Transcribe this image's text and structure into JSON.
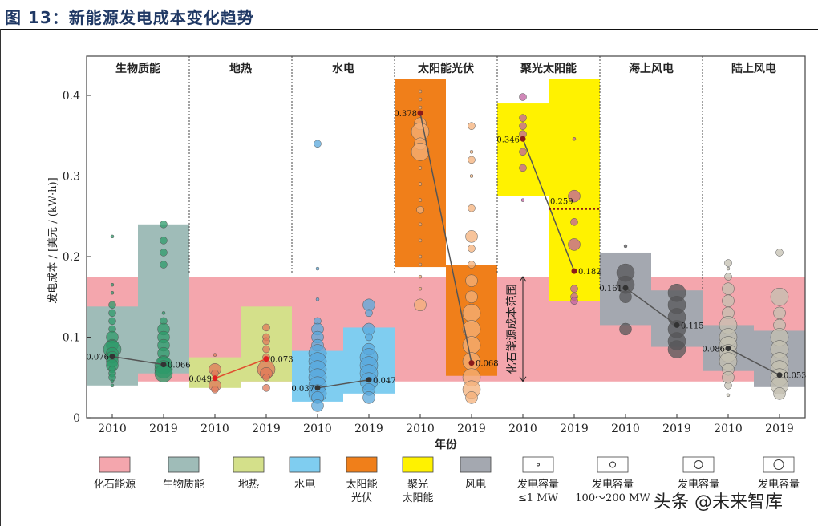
{
  "title": "图 13：新能源发电成本变化趋势",
  "watermark": "头条 @未来智库",
  "chart_data": {
    "type": "scatter",
    "title": "新能源发电成本变化趋势",
    "xlabel": "年份",
    "ylabel": "发电成本 / [美元 / (kW·h)]",
    "ylim": [
      0,
      0.44
    ],
    "yticks": [
      0,
      0.1,
      0.2,
      0.3,
      0.4
    ],
    "ytick_labels": [
      "0",
      "0.1",
      "0.2",
      "0.3",
      "0.4"
    ],
    "fossil_range": [
      0.045,
      0.175
    ],
    "fossil_annotation": "化石能源成本范围",
    "groups": [
      {
        "name": "生物质能",
        "color": "#9fbcb8",
        "point_color": "#2e9a6a",
        "years": [
          "2010",
          "2019"
        ],
        "median": [
          0.076,
          0.066
        ],
        "median_labels": [
          "0.076",
          "0.066"
        ],
        "range": [
          [
            0.04,
            0.138
          ],
          [
            0.055,
            0.24
          ]
        ],
        "points": [
          [
            [
              0.225,
              1
            ],
            [
              0.165,
              1
            ],
            [
              0.155,
              1
            ],
            [
              0.14,
              2
            ],
            [
              0.13,
              2
            ],
            [
              0.12,
              2
            ],
            [
              0.11,
              2
            ],
            [
              0.1,
              3
            ],
            [
              0.09,
              3
            ],
            [
              0.085,
              4
            ],
            [
              0.08,
              3
            ],
            [
              0.075,
              3
            ],
            [
              0.07,
              3
            ],
            [
              0.065,
              3
            ],
            [
              0.06,
              2
            ],
            [
              0.055,
              2
            ],
            [
              0.05,
              2
            ],
            [
              0.045,
              1
            ],
            [
              0.04,
              1
            ]
          ],
          [
            [
              0.24,
              2
            ],
            [
              0.22,
              2
            ],
            [
              0.205,
              2
            ],
            [
              0.19,
              2
            ],
            [
              0.13,
              1
            ],
            [
              0.12,
              2
            ],
            [
              0.11,
              3
            ],
            [
              0.1,
              3
            ],
            [
              0.09,
              3
            ],
            [
              0.08,
              3
            ],
            [
              0.07,
              3
            ],
            [
              0.065,
              4
            ],
            [
              0.06,
              4
            ],
            [
              0.055,
              4
            ]
          ]
        ]
      },
      {
        "name": "地热",
        "color": "#d4e08a",
        "point_color": "#e07a5a",
        "years": [
          "2010",
          "2019"
        ],
        "median": [
          0.049,
          0.073
        ],
        "median_labels": [
          "0.049",
          "0.073"
        ],
        "range": [
          [
            0.037,
            0.075
          ],
          [
            0.045,
            0.138
          ]
        ],
        "points": [
          [
            [
              0.078,
              1
            ],
            [
              0.06,
              3
            ],
            [
              0.055,
              2
            ],
            [
              0.04,
              3
            ],
            [
              0.035,
              2
            ]
          ],
          [
            [
              0.112,
              2
            ],
            [
              0.1,
              2
            ],
            [
              0.095,
              2
            ],
            [
              0.085,
              2
            ],
            [
              0.075,
              2
            ],
            [
              0.06,
              4
            ],
            [
              0.055,
              3
            ],
            [
              0.05,
              2
            ],
            [
              0.037,
              2
            ]
          ]
        ]
      },
      {
        "name": "水电",
        "color": "#7fcdf0",
        "point_color": "#5aa8dc",
        "years": [
          "2010",
          "2019"
        ],
        "median": [
          0.037,
          0.047
        ],
        "median_labels": [
          "0.037",
          "0.047"
        ],
        "range": [
          [
            0.02,
            0.083
          ],
          [
            0.03,
            0.112
          ]
        ],
        "points": [
          [
            [
              0.34,
              2
            ],
            [
              0.185,
              1
            ],
            [
              0.147,
              1
            ],
            [
              0.12,
              2
            ],
            [
              0.11,
              3
            ],
            [
              0.1,
              3
            ],
            [
              0.09,
              3
            ],
            [
              0.08,
              4
            ],
            [
              0.07,
              4
            ],
            [
              0.06,
              4
            ],
            [
              0.05,
              4
            ],
            [
              0.04,
              4
            ],
            [
              0.03,
              4
            ],
            [
              0.025,
              3
            ],
            [
              0.015,
              3
            ]
          ],
          [
            [
              0.14,
              3
            ],
            [
              0.13,
              2
            ],
            [
              0.11,
              3
            ],
            [
              0.1,
              2
            ],
            [
              0.085,
              3
            ],
            [
              0.075,
              4
            ],
            [
              0.065,
              4
            ],
            [
              0.055,
              4
            ],
            [
              0.045,
              4
            ],
            [
              0.035,
              3
            ],
            [
              0.025,
              3
            ]
          ]
        ]
      },
      {
        "name": "太阳能光伏",
        "color": "#f07f1a",
        "point_color": "#f4b07a",
        "years": [
          "2010",
          "2019"
        ],
        "median": [
          0.378,
          0.068
        ],
        "median_labels": [
          "0.378",
          "0.068"
        ],
        "range": [
          [
            0.187,
            0.42
          ],
          [
            0.052,
            0.19
          ]
        ],
        "points": [
          [
            [
              0.405,
              1
            ],
            [
              0.395,
              1
            ],
            [
              0.385,
              1
            ],
            [
              0.365,
              3
            ],
            [
              0.355,
              4
            ],
            [
              0.34,
              3
            ],
            [
              0.33,
              4
            ],
            [
              0.31,
              1
            ],
            [
              0.29,
              1
            ],
            [
              0.27,
              1
            ],
            [
              0.258,
              2
            ],
            [
              0.24,
              1
            ],
            [
              0.22,
              1
            ],
            [
              0.2,
              1
            ],
            [
              0.19,
              1
            ],
            [
              0.175,
              1
            ],
            [
              0.16,
              1
            ],
            [
              0.14,
              3
            ]
          ],
          [
            [
              0.362,
              2
            ],
            [
              0.33,
              1
            ],
            [
              0.32,
              2
            ],
            [
              0.3,
              1
            ],
            [
              0.26,
              2
            ],
            [
              0.225,
              3
            ],
            [
              0.21,
              2
            ],
            [
              0.19,
              2
            ],
            [
              0.17,
              3
            ],
            [
              0.15,
              3
            ],
            [
              0.13,
              4
            ],
            [
              0.11,
              4
            ],
            [
              0.09,
              4
            ],
            [
              0.07,
              4
            ],
            [
              0.05,
              4
            ],
            [
              0.035,
              4
            ],
            [
              0.025,
              3
            ]
          ]
        ]
      },
      {
        "name": "聚光太阳能",
        "color": "#fff200",
        "point_color": "#c060a0",
        "years": [
          "2010",
          "2019"
        ],
        "median": [
          0.346,
          0.182
        ],
        "median_labels": [
          "0.346",
          "0.182"
        ],
        "extra_line": 0.259,
        "extra_line_label": "0.259",
        "range": [
          [
            0.275,
            0.39
          ],
          [
            0.145,
            0.42
          ]
        ],
        "points": [
          [
            [
              0.398,
              2
            ],
            [
              0.372,
              2
            ],
            [
              0.362,
              2
            ],
            [
              0.352,
              2
            ],
            [
              0.33,
              2
            ],
            [
              0.31,
              2
            ],
            [
              0.27,
              1
            ]
          ],
          [
            [
              0.346,
              1
            ],
            [
              0.275,
              3
            ],
            [
              0.243,
              2
            ],
            [
              0.215,
              3
            ],
            [
              0.16,
              2
            ],
            [
              0.15,
              2
            ],
            [
              0.145,
              2
            ]
          ]
        ]
      },
      {
        "name": "海上风电",
        "color": "#a4a8b0",
        "point_color": "#555558",
        "years": [
          "2010",
          "2019"
        ],
        "median": [
          0.161,
          0.115
        ],
        "median_labels": [
          "0.161",
          "0.115"
        ],
        "range": [
          [
            0.115,
            0.205
          ],
          [
            0.088,
            0.158
          ]
        ],
        "points": [
          [
            [
              0.213,
              1
            ],
            [
              0.18,
              4
            ],
            [
              0.165,
              4
            ],
            [
              0.15,
              3
            ],
            [
              0.11,
              3
            ]
          ],
          [
            [
              0.155,
              4
            ],
            [
              0.14,
              4
            ],
            [
              0.125,
              4
            ],
            [
              0.11,
              4
            ],
            [
              0.095,
              4
            ],
            [
              0.085,
              4
            ]
          ]
        ]
      },
      {
        "name": "陆上风电",
        "color": "#a4a8b0",
        "point_color": "#c4c0b2",
        "years": [
          "2010",
          "2019"
        ],
        "median": [
          0.086,
          0.053
        ],
        "median_labels": [
          "0.086",
          "0.053"
        ],
        "range": [
          [
            0.058,
            0.115
          ],
          [
            0.038,
            0.108
          ]
        ],
        "points": [
          [
            [
              0.192,
              2
            ],
            [
              0.185,
              1
            ],
            [
              0.175,
              2
            ],
            [
              0.16,
              3
            ],
            [
              0.145,
              3
            ],
            [
              0.13,
              3
            ],
            [
              0.115,
              4
            ],
            [
              0.1,
              4
            ],
            [
              0.09,
              4
            ],
            [
              0.08,
              4
            ],
            [
              0.07,
              4
            ],
            [
              0.06,
              3
            ],
            [
              0.05,
              3
            ],
            [
              0.04,
              2
            ],
            [
              0.028,
              1
            ]
          ],
          [
            [
              0.205,
              2
            ],
            [
              0.15,
              4
            ],
            [
              0.13,
              3
            ],
            [
              0.115,
              3
            ],
            [
              0.1,
              4
            ],
            [
              0.085,
              4
            ],
            [
              0.07,
              4
            ],
            [
              0.06,
              4
            ],
            [
              0.05,
              4
            ],
            [
              0.04,
              4
            ],
            [
              0.03,
              3
            ]
          ]
        ]
      }
    ],
    "legend": [
      {
        "label": "化石能源",
        "color": "#f4a6ad"
      },
      {
        "label": "生物质能",
        "color": "#9fbcb8"
      },
      {
        "label": "地热",
        "color": "#d4e08a"
      },
      {
        "label": "水电",
        "color": "#7fcdf0"
      },
      {
        "label": "太阳能\n光伏",
        "color": "#f07f1a"
      },
      {
        "label": "聚光\n太阳能",
        "color": "#fff200"
      },
      {
        "label": "风电",
        "color": "#a4a8b0"
      },
      {
        "label": "发电容量\n≤1 MW",
        "bubble": 1
      },
      {
        "label": "发电容量\n100～200 MW",
        "bubble": 2
      },
      {
        "label": "发电容量",
        "bubble": 3
      },
      {
        "label": "发电容量",
        "bubble": 4
      }
    ]
  }
}
